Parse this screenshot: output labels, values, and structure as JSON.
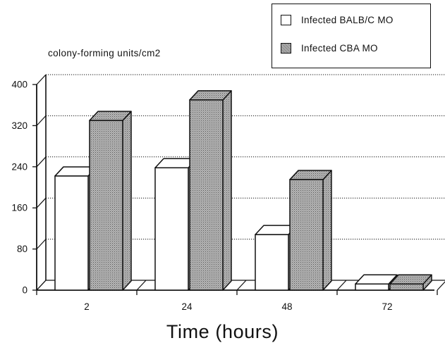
{
  "chart_data": {
    "type": "bar",
    "categories": [
      "2",
      "24",
      "48",
      "72"
    ],
    "series": [
      {
        "name": "Infected BALB/C MO",
        "values": [
          222,
          238,
          108,
          12
        ],
        "color": "#ffffff"
      },
      {
        "name": "Infected CBA MO",
        "values": [
          330,
          370,
          215,
          12
        ],
        "color": "#a9a9a9"
      }
    ],
    "ylabel": "colony-forming  units/cm2",
    "xlabel": "Time  (hours)",
    "yticks": [
      "0",
      "80",
      "160",
      "240",
      "320",
      "400"
    ],
    "ylim": [
      0,
      400
    ],
    "grid": true,
    "legend_position": "top-right",
    "style": "3d"
  }
}
